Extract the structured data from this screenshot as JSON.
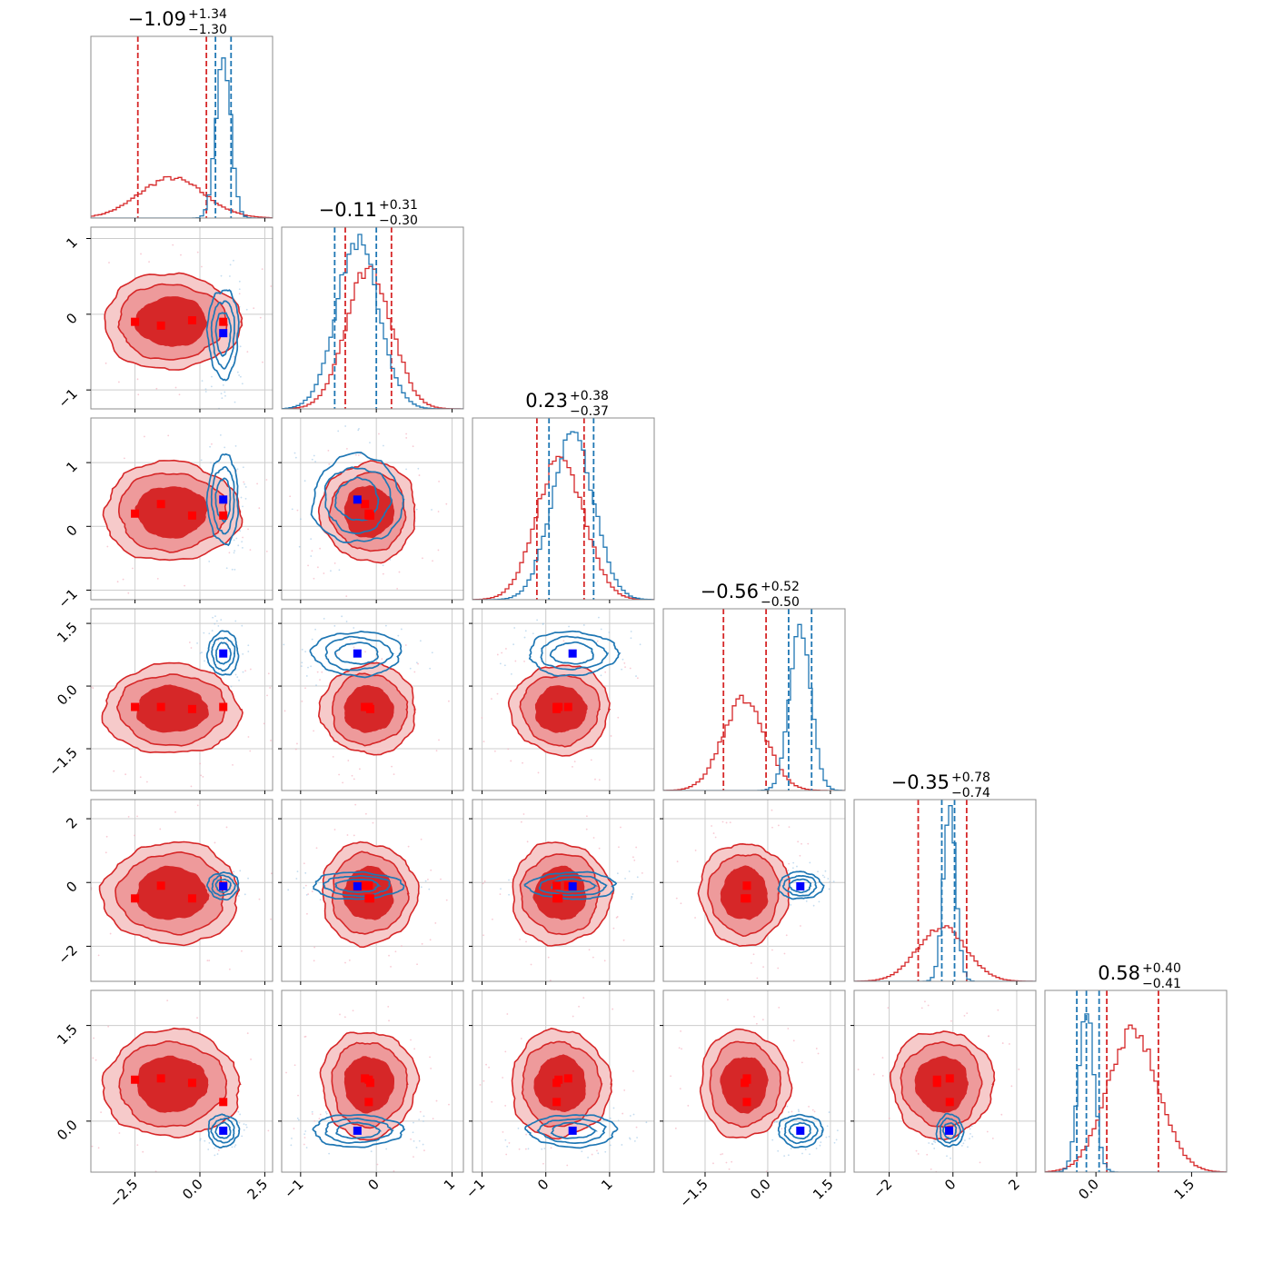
{
  "chart_data": {
    "type": "corner",
    "description_colors": {
      "red": "#d62728",
      "red_light": "#ee9a9b",
      "red_lighter": "#f6caca",
      "blue": "#1f77b4",
      "marker_blue": "#0000ff",
      "marker_red": "#ff0000",
      "grid": "#cccccc"
    },
    "series": [
      {
        "color": "red"
      },
      {
        "color": "blue"
      }
    ],
    "parameters": [
      {
        "title_main": "−1.09",
        "title_sup": "+1.34",
        "title_sub": "−1.30",
        "range": [
          -4.2,
          2.8
        ],
        "ticks": [
          -2.5,
          0.0,
          2.5
        ],
        "tick_labels": [
          "−2.5",
          "0.0",
          "2.5"
        ],
        "red": {
          "mean": -1.09,
          "sd": 1.25,
          "q": [
            -2.39,
            0.25
          ]
        },
        "blue": {
          "mean": 0.9,
          "sd": 0.28,
          "q": [
            0.6,
            1.2
          ]
        }
      },
      {
        "title_main": "−0.11",
        "title_sup": "+0.31",
        "title_sub": "−0.30",
        "range": [
          -1.25,
          1.15
        ],
        "ticks": [
          -1,
          0,
          1
        ],
        "tick_labels": [
          "−1",
          "0",
          "1"
        ],
        "red": {
          "mean": -0.1,
          "sd": 0.3,
          "q": [
            -0.41,
            0.2
          ]
        },
        "blue": {
          "mean": -0.25,
          "sd": 0.28,
          "q": [
            -0.55,
            0.0
          ]
        }
      },
      {
        "title_main": "0.23",
        "title_sup": "+0.38",
        "title_sub": "−0.37",
        "range": [
          -1.15,
          1.7
        ],
        "ticks": [
          -1,
          0,
          1
        ],
        "tick_labels": [
          "−1",
          "0",
          "1"
        ],
        "red": {
          "mean": 0.23,
          "sd": 0.37,
          "q": [
            -0.14,
            0.6
          ]
        },
        "blue": {
          "mean": 0.42,
          "sd": 0.33,
          "q": [
            0.05,
            0.75
          ]
        }
      },
      {
        "title_main": "−0.56",
        "title_sup": "+0.52",
        "title_sub": "−0.50",
        "range": [
          -2.5,
          1.85
        ],
        "ticks": [
          -1.5,
          0.0,
          1.5
        ],
        "tick_labels": [
          "−1.5",
          "0.0",
          "1.5"
        ],
        "red": {
          "mean": -0.56,
          "sd": 0.51,
          "q": [
            -1.06,
            -0.04
          ]
        },
        "blue": {
          "mean": 0.78,
          "sd": 0.25,
          "q": [
            0.5,
            1.05
          ]
        }
      },
      {
        "title_main": "−0.35",
        "title_sup": "+0.78",
        "title_sub": "−0.74",
        "range": [
          -3.1,
          2.6
        ],
        "ticks": [
          -2,
          0,
          2
        ],
        "tick_labels": [
          "−2",
          "0",
          "2"
        ],
        "red": {
          "mean": -0.35,
          "sd": 0.76,
          "q": [
            -1.09,
            0.43
          ]
        },
        "blue": {
          "mean": -0.1,
          "sd": 0.2,
          "q": [
            -0.35,
            0.05
          ]
        }
      },
      {
        "title_main": "0.58",
        "title_sup": "+0.40",
        "title_sub": "−0.41",
        "range": [
          -0.8,
          2.05
        ],
        "ticks": [
          0.0,
          1.5
        ],
        "tick_labels": [
          "0.0",
          "1.5"
        ],
        "red": {
          "mean": 0.58,
          "sd": 0.4,
          "q": [
            0.17,
            0.98
          ]
        },
        "blue": {
          "mean": -0.15,
          "sd": 0.12,
          "q": [
            -0.3,
            0.05
          ]
        }
      }
    ],
    "truth_markers": {
      "blue": [
        0.9,
        -0.25,
        0.42,
        0.78,
        -0.12,
        -0.15
      ],
      "red": [
        [
          -2.5,
          -0.1,
          0.2,
          -0.5,
          -0.5,
          0.65
        ],
        [
          -1.5,
          -0.15,
          0.35,
          -0.5,
          -0.1,
          0.67
        ],
        [
          -0.3,
          -0.08,
          0.17,
          -0.55,
          -0.5,
          0.6
        ],
        [
          0.9,
          -0.1,
          0.17,
          -0.5,
          -0.1,
          0.3
        ]
      ]
    }
  }
}
